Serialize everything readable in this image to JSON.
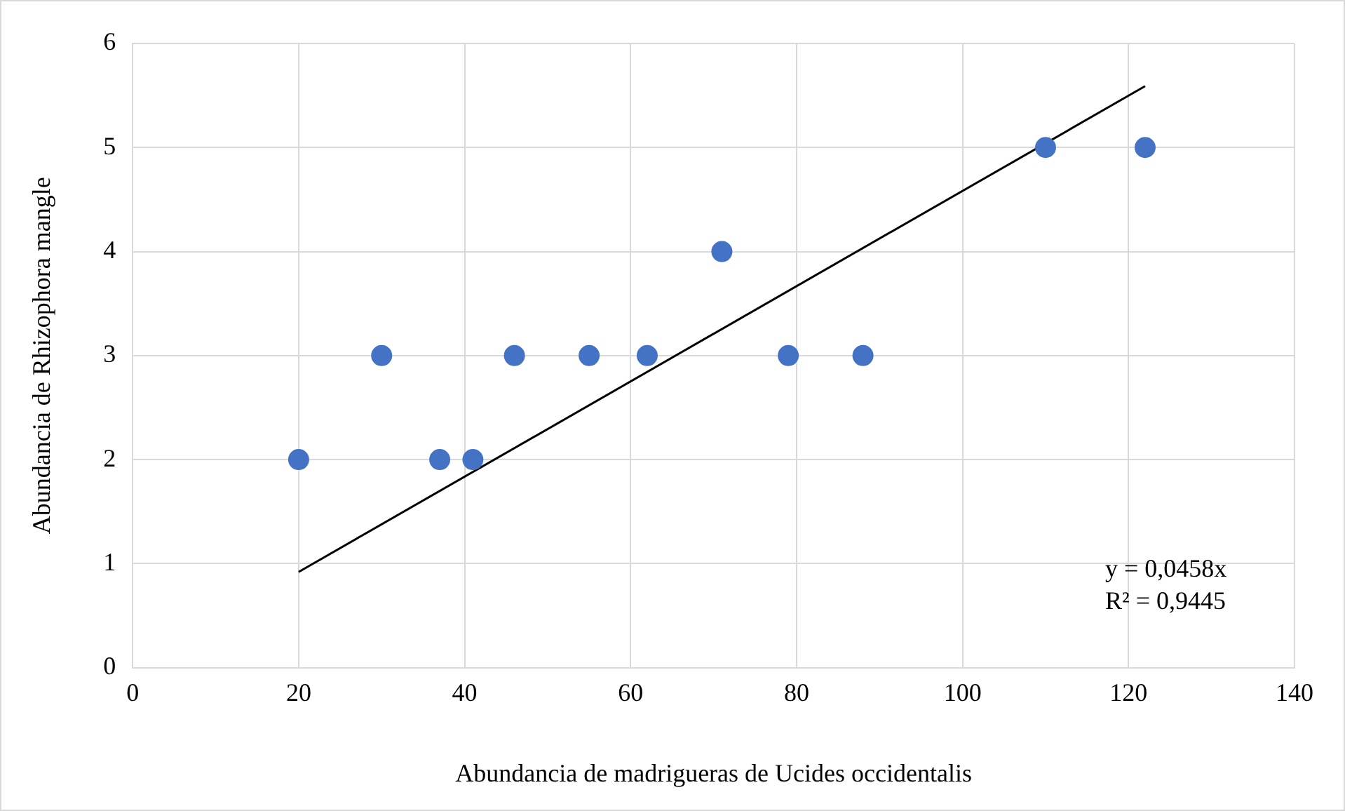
{
  "chart_data": {
    "type": "scatter",
    "xlabel": "Abundancia de madrigueras de Ucides occidentalis",
    "ylabel": "Abundancia de Rhizophora mangle",
    "x": [
      20,
      30,
      37,
      41,
      46,
      55,
      62,
      71,
      79,
      88,
      110,
      122
    ],
    "series": [
      {
        "type": "scatter",
        "color": "#4472c4",
        "values": [
          2,
          3,
          2,
          2,
          3,
          3,
          3,
          4,
          3,
          3,
          5,
          5
        ],
        "marker": "circle"
      },
      {
        "type": "line",
        "color": "#000000",
        "x": [
          20,
          122
        ],
        "values": [
          0.92,
          5.59
        ],
        "marker": "none"
      }
    ],
    "xlim": [
      0,
      140
    ],
    "xticks": [
      0,
      20,
      40,
      60,
      80,
      100,
      120,
      140
    ],
    "ylim": [
      0,
      6
    ],
    "yticks": [
      0,
      1,
      2,
      3,
      4,
      5,
      6
    ],
    "grid": true,
    "legend": false,
    "annotations": [
      "y = 0,0458x",
      "R² = 0,9445"
    ]
  }
}
